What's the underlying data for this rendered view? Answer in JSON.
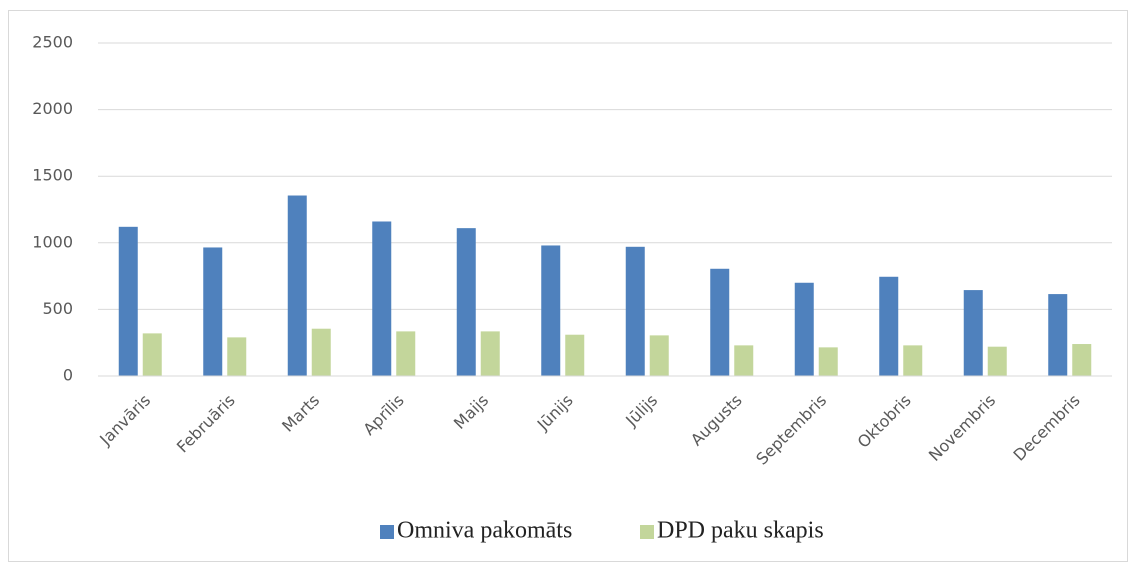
{
  "chart_data": {
    "type": "bar",
    "categories": [
      "Janvāris",
      "Februāris",
      "Marts",
      "Aprīlis",
      "Maijs",
      "Jūnijs",
      "Jūlijs",
      "Augusts",
      "Septembris",
      "Oktobris",
      "Novembris",
      "Decembris"
    ],
    "series": [
      {
        "name": "Omniva pakomāts",
        "color": "#4f81bd",
        "values": [
          1120,
          965,
          1355,
          1160,
          1110,
          980,
          970,
          805,
          700,
          745,
          645,
          615
        ]
      },
      {
        "name": "DPD paku skapis",
        "color": "#c3d69b",
        "values": [
          320,
          290,
          355,
          335,
          335,
          310,
          305,
          230,
          215,
          230,
          220,
          240
        ]
      }
    ],
    "ylim": [
      0,
      2500
    ],
    "yticks": [
      0,
      500,
      1000,
      1500,
      2000,
      2500
    ],
    "grid": true,
    "legend": "bottom"
  }
}
